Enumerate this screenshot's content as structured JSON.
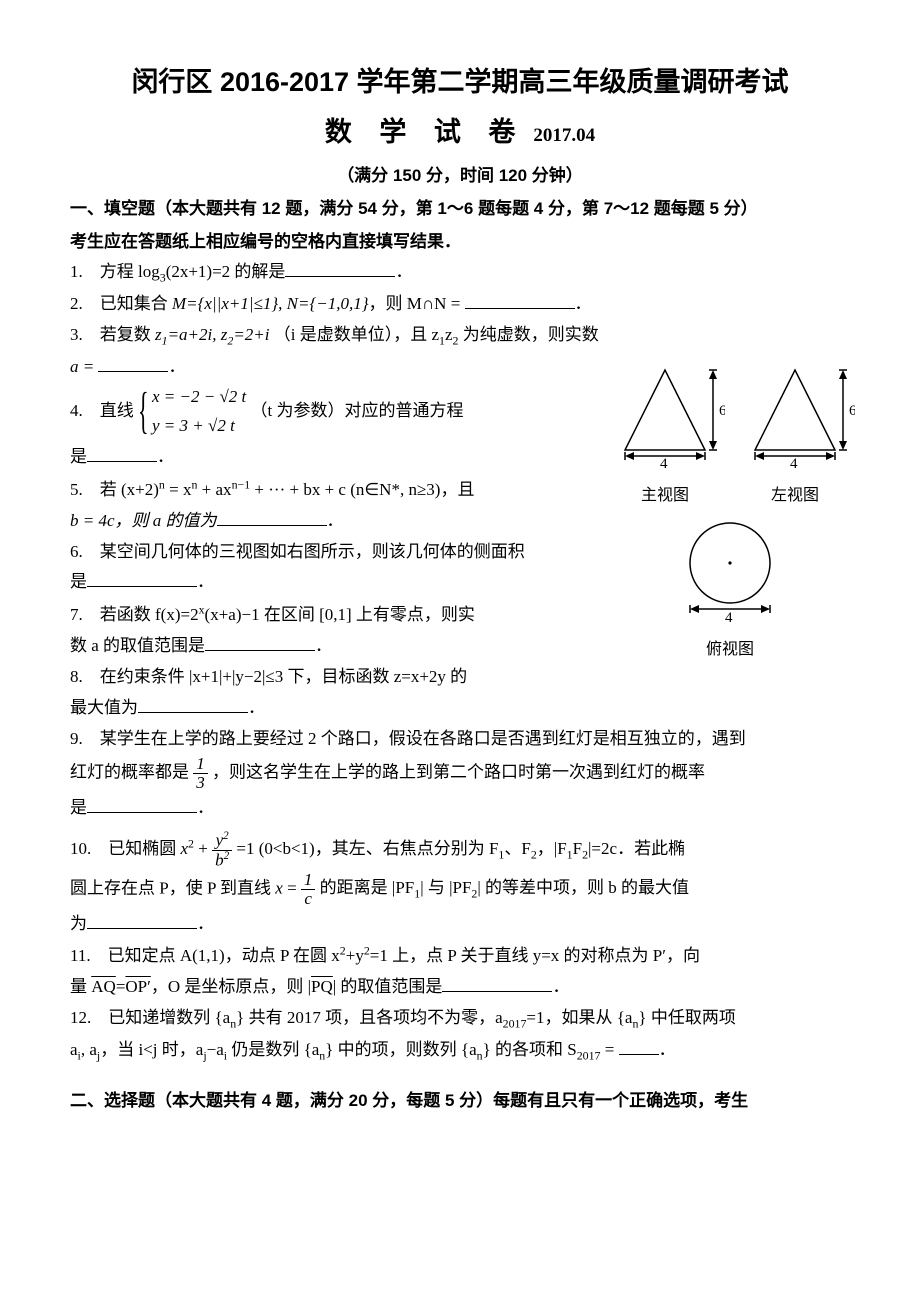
{
  "doc": {
    "title_line": "闵行区 2016-2017 学年第二学期高三年级质量调研考试",
    "subject": "数 学 试 卷",
    "date": "2017.04",
    "meta": "（满分 150 分，时间 120 分钟）",
    "section1_head1": "一、填空题（本大题共有 12 题，满分 54 分，第 1～6 题每题 4 分，第 7～12 题每题 5 分）",
    "section1_head2": "考生应在答题纸上相应编号的空格内直接填写结果．",
    "section2_head": "二、选择题（本大题共有 4 题，满分 20 分，每题 5 分）每题有且只有一个正确选项，考生"
  },
  "q": {
    "q1": "1.　方程 log<sub>3</sub>(2x+1)=2 的解是",
    "q2a": "2.　已知集合 ",
    "q2_set": "M={x||x+1|≤1}, N={−1,0,1}",
    "q2b": "，则 M∩N =",
    "q3a": "3.　若复数 ",
    "q3_z": "z<sub>1</sub>=a+2i, z<sub>2</sub>=2+i",
    "q3b": "（i 是虚数单位），且 z<sub>1</sub>z<sub>2</sub> 为纯虚数，则实数",
    "q3c": "a =",
    "q4a": "4.　直线",
    "q4_sys1": "x = −2 − √2 t",
    "q4_sys2": "y = 3 + √2 t",
    "q4b": "（t 为参数）对应的普通方程",
    "q4c": "是",
    "q5a": "5.　若 (x+2)<sup>n</sup> = x<sup>n</sup> + ax<sup>n−1</sup> + ··· + bx + c (n∈N*, n≥3)，且",
    "q5b": "b = 4c，则 a 的值为",
    "q6a": "6.　某空间几何体的三视图如右图所示，则该几何体的侧面积",
    "q6b": "是",
    "q7a": "7.　若函数 f(x)=2<sup>x</sup>(x+a)−1 在区间 [0,1] 上有零点，则实",
    "q7b": "数 a 的取值范围是",
    "q8a": "8.　在约束条件 |x+1|+|y−2|≤3 下，目标函数 z=x+2y 的",
    "q8b": "最大值为",
    "q9a": "9.　某学生在上学的路上要经过 2 个路口，假设在各路口是否遇到红灯是相互独立的，遇到",
    "q9b_pre": "红灯的概率都是",
    "q9b_post": "，则这名学生在上学的路上到第二个路口时第一次遇到红灯的概率",
    "q9c": "是",
    "q10a_pre": "10.　已知椭圆 ",
    "q10a_post": " (0&lt;b&lt;1)，其左、右焦点分别为 F<sub>1</sub>、F<sub>2</sub>，|F<sub>1</sub>F<sub>2</sub>|=2c．若此椭",
    "q10b_pre": "圆上存在点 P，使 P 到直线 ",
    "q10b_post": " 的距离是 |PF<sub>1</sub>| 与 |PF<sub>2</sub>| 的等差中项，则 b 的最大值",
    "q10c": "为",
    "q11a": "11.　已知定点 A(1,1)，动点 P 在圆 x<sup>2</sup>+y<sup>2</sup>=1 上，点 P 关于直线 y=x 的对称点为 P′，向",
    "q11b": "量 <span class='over'>AQ</span>=<span class='over'>OP′</span>，O 是坐标原点，则 |<span class='over'>PQ</span>| 的取值范围是",
    "q12a": "12.　已知递增数列 {a<sub>n</sub>} 共有 2017 项，且各项均不为零，a<sub>2017</sub>=1，如果从 {a<sub>n</sub>} 中任取两项",
    "q12b": "a<sub>i</sub>, a<sub>j</sub>，当 i&lt;j 时，a<sub>j</sub>−a<sub>i</sub> 仍是数列 {a<sub>n</sub>} 中的项，则数列 {a<sub>n</sub>} 的各项和 S<sub>2017</sub> ="
  },
  "fig": {
    "dim_h": "6",
    "dim_w": "4",
    "label_front": "主视图",
    "label_side": "左视图",
    "label_top": "俯视图",
    "stroke": "#000000",
    "stroke_width": 1.5
  }
}
